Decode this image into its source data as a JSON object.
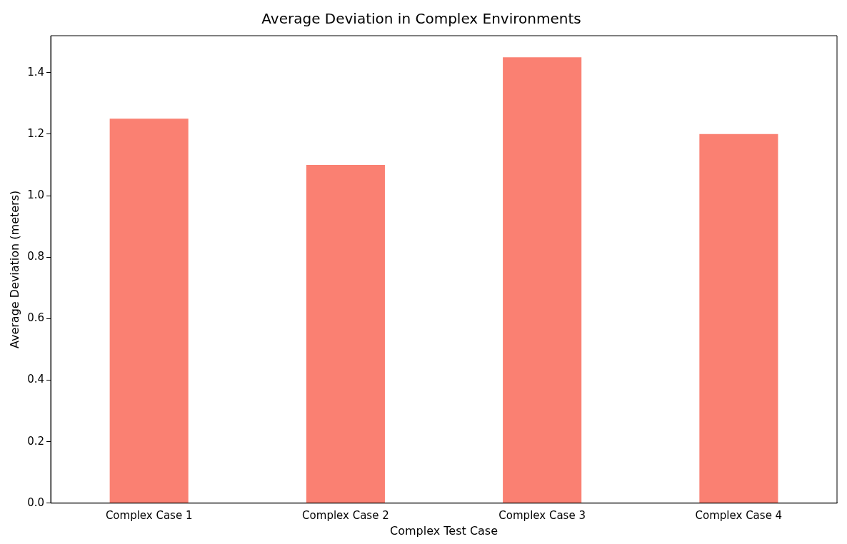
{
  "chart_data": {
    "type": "bar",
    "title": "Average Deviation in Complex Environments",
    "xlabel": "Complex Test Case",
    "ylabel": "Average Deviation (meters)",
    "categories": [
      "Complex Case 1",
      "Complex Case 2",
      "Complex Case 3",
      "Complex Case 4"
    ],
    "values": [
      1.25,
      1.1,
      1.45,
      1.2
    ],
    "color": "#fa8072",
    "ylim": [
      0,
      1.52
    ],
    "yticks": [
      {
        "value": 0,
        "label": "0.0"
      },
      {
        "value": 0.2,
        "label": "0.2"
      },
      {
        "value": 0.4,
        "label": "0.4"
      },
      {
        "value": 0.6,
        "label": "0.6"
      },
      {
        "value": 0.8,
        "label": "0.8"
      },
      {
        "value": 1.0,
        "label": "1.0"
      },
      {
        "value": 1.2,
        "label": "1.2"
      },
      {
        "value": 1.4,
        "label": "1.4"
      }
    ],
    "grid": false,
    "legend": false
  }
}
